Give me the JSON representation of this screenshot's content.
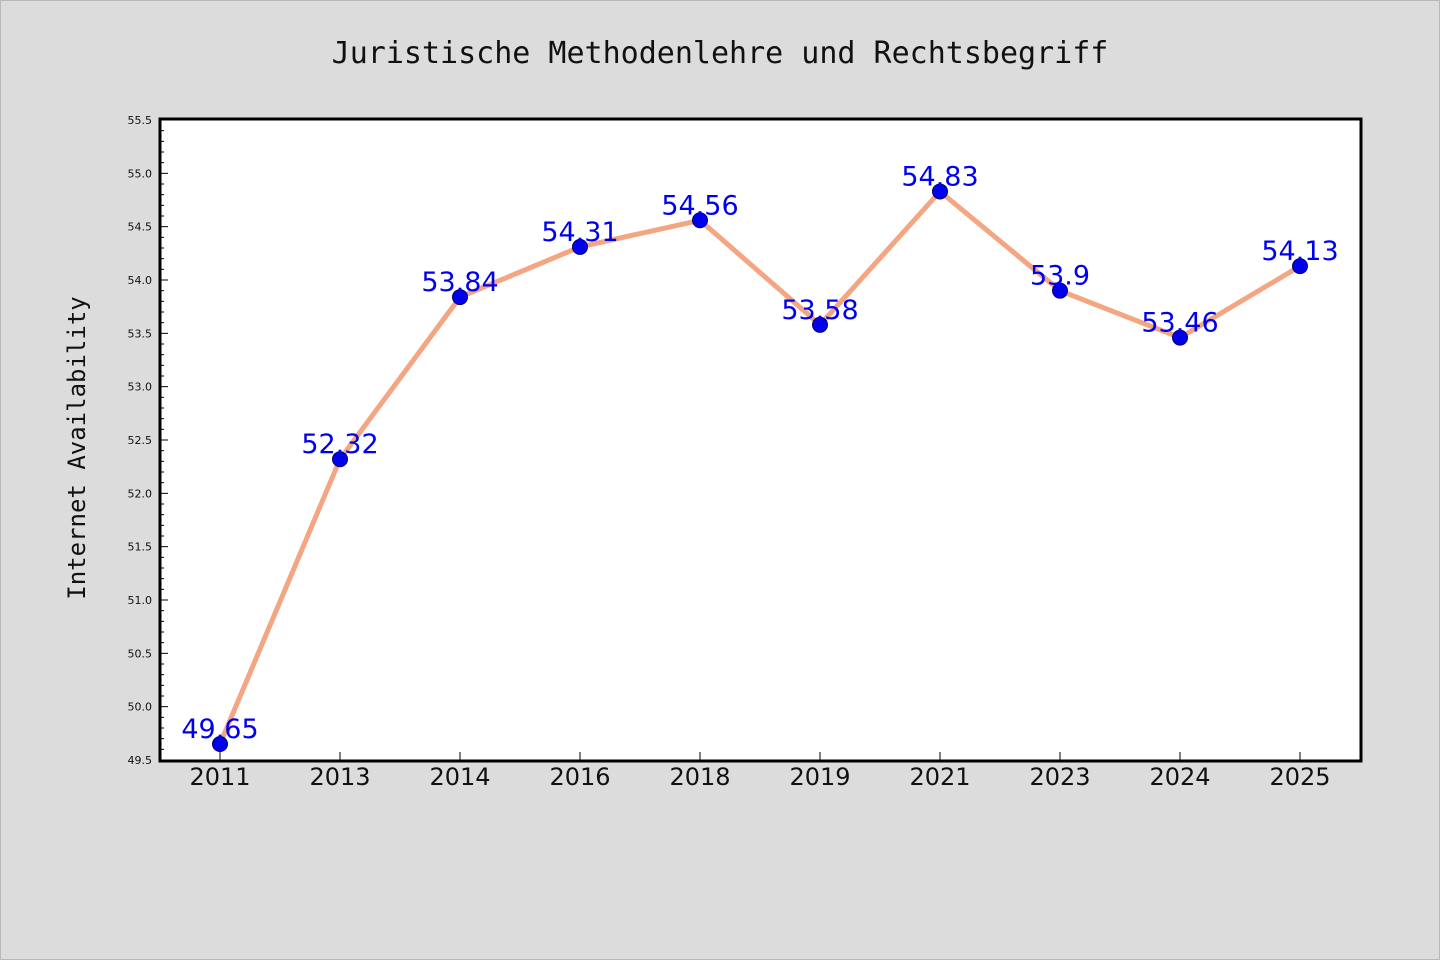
{
  "chart_data": {
    "type": "line",
    "title": "Juristische Methodenlehre und Rechtsbegriff",
    "ylabel": "Internet Availability",
    "xlabel": "",
    "categories": [
      "2011",
      "2013",
      "2014",
      "2016",
      "2018",
      "2019",
      "2021",
      "2023",
      "2024",
      "2025"
    ],
    "series": [
      {
        "values": [
          49.65,
          52.32,
          53.84,
          54.31,
          54.56,
          53.58,
          54.83,
          53.9,
          53.46,
          54.13
        ],
        "labels": [
          "49.65",
          "52.32",
          "53.84",
          "54.31",
          "54.56",
          "53.58",
          "54.83",
          "53.9",
          "53.46",
          "54.13"
        ]
      }
    ],
    "ylim": [
      49.5,
      55.5
    ],
    "yticks": [
      "49.5",
      "50.0",
      "50.5",
      "51.0",
      "51.5",
      "52.0",
      "52.5",
      "53.0",
      "53.5",
      "54.0",
      "54.5",
      "55.0",
      "55.5"
    ],
    "grid": false,
    "legend": "none",
    "colors": {
      "line": "#f4a582",
      "marker": "#0000ee",
      "marker_edge": "#00006e",
      "data_label": "#0000ee",
      "background": "#dcdcdc",
      "plot_area": "#ffffff"
    }
  }
}
